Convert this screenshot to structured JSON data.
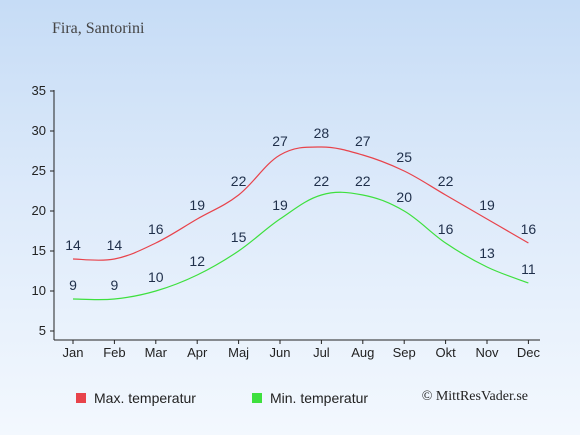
{
  "chart_data": {
    "type": "line",
    "title": "Fira, Santorini",
    "categories": [
      "Jan",
      "Feb",
      "Mar",
      "Apr",
      "Maj",
      "Jun",
      "Jul",
      "Aug",
      "Sep",
      "Okt",
      "Nov",
      "Dec"
    ],
    "series": [
      {
        "name": "Max. temperatur",
        "color": "#e8434b",
        "values": [
          14,
          14,
          16,
          19,
          22,
          27,
          28,
          27,
          25,
          22,
          19,
          16
        ]
      },
      {
        "name": "Min. temperatur",
        "color": "#3ee03e",
        "values": [
          9,
          9,
          10,
          12,
          15,
          19,
          22,
          22,
          20,
          16,
          13,
          11
        ]
      }
    ],
    "ylim": [
      5,
      35
    ],
    "yticks": [
      5,
      10,
      15,
      20,
      25,
      30,
      35
    ],
    "grid": false,
    "legend": "bottom"
  },
  "copyright": "© MittResVader.se"
}
